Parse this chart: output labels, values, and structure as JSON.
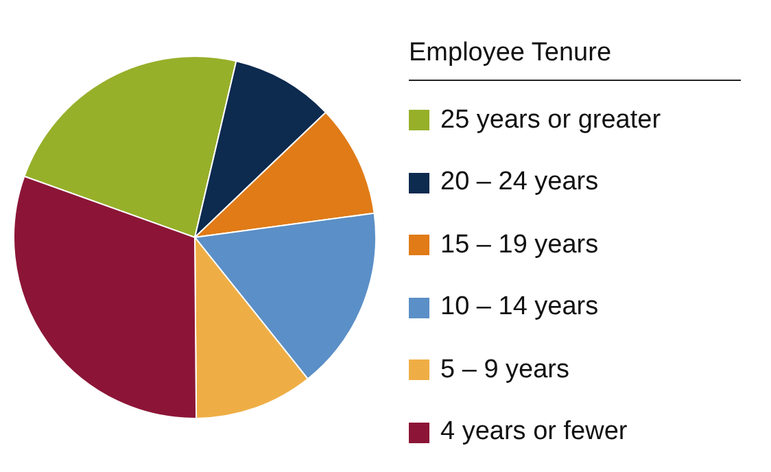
{
  "chart_data": {
    "type": "pie",
    "legend_title": "Employee Tenure",
    "legend": "right",
    "categories": [
      "25 years or greater",
      "20 – 24 years",
      "15 – 19 years",
      "10 – 14 years",
      "5 – 9 years",
      "4 years or fewer"
    ],
    "values": [
      23.2,
      9.2,
      10,
      16.4,
      10.6,
      30.6
    ],
    "colors": [
      "#97b02a",
      "#0d2a4f",
      "#e07b17",
      "#5b8fc7",
      "#efae45",
      "#8c1537"
    ]
  }
}
